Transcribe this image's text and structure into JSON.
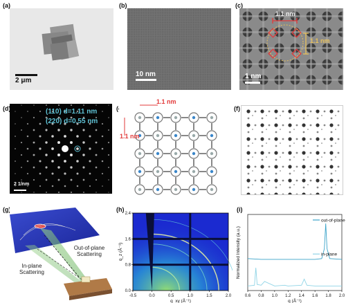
{
  "panels": {
    "a": {
      "label": "(a)",
      "scalebar": "2 μm"
    },
    "b": {
      "label": "(b)",
      "scalebar": "10 nm"
    },
    "c": {
      "label": "(c)",
      "scalebar": "1 nm",
      "dim1": "1.1 nm",
      "dim2": "1.1 nm"
    },
    "d": {
      "label": "(d)",
      "ann1": "(110) d=1.11 nm",
      "ann2": "(220) d=0.55 nm",
      "scalebar": "2 1/nm"
    },
    "e": {
      "label": "(e)",
      "dim_h": "1.1 nm",
      "dim_v": "1.1 nm"
    },
    "f": {
      "label": "(f)"
    },
    "g": {
      "label": "(g)",
      "text_out": "Out-of-plane Scattering",
      "text_in": "In-plane Scattering"
    },
    "h": {
      "label": "(h)"
    },
    "i": {
      "label": "(i)"
    }
  },
  "colors": {
    "teal": "#5fc3d6",
    "red": "#e23a3a",
    "gold": "#e8c15c",
    "blue_trace": "#3aa3c9"
  },
  "chart_data": [
    {
      "type": "heatmap",
      "panel": "h",
      "xlabel": "q_xy (Å⁻¹)",
      "ylabel": "q_z (Å⁻¹)",
      "xlim": [
        -0.5,
        2.0
      ],
      "ylim": [
        0.0,
        2.4
      ],
      "xticks": [
        "-0.5",
        "0.0",
        "0.5",
        "1.0",
        "1.5",
        "2.0"
      ],
      "yticks": [
        "0.0",
        "0.8",
        "1.6",
        "2.4"
      ]
    },
    {
      "type": "line",
      "panel": "i",
      "xlabel": "q (Å⁻¹)",
      "ylabel": "Normalized Intensity (a.u.)",
      "xlim": [
        0.6,
        2.0
      ],
      "xticks": [
        "0.6",
        "0.8",
        "1.0",
        "1.2",
        "1.4",
        "1.6",
        "1.8",
        "2.0"
      ],
      "series": [
        {
          "name": "out-of-plane",
          "x": [
            0.6,
            0.8,
            1.0,
            1.2,
            1.4,
            1.6,
            1.7,
            1.74,
            1.76,
            1.78,
            1.82,
            2.0
          ],
          "y": [
            0.42,
            0.41,
            0.41,
            0.41,
            0.41,
            0.41,
            0.42,
            0.55,
            0.88,
            0.55,
            0.42,
            0.41
          ]
        },
        {
          "name": "in-plane",
          "x": [
            0.6,
            0.7,
            0.72,
            0.74,
            0.8,
            0.85,
            1.0,
            1.15,
            1.2,
            1.4,
            1.44,
            1.48,
            1.6,
            1.8,
            2.0
          ],
          "y": [
            0.06,
            0.07,
            0.3,
            0.08,
            0.07,
            0.12,
            0.06,
            0.07,
            0.06,
            0.07,
            0.15,
            0.07,
            0.06,
            0.06,
            0.06
          ]
        }
      ]
    }
  ]
}
